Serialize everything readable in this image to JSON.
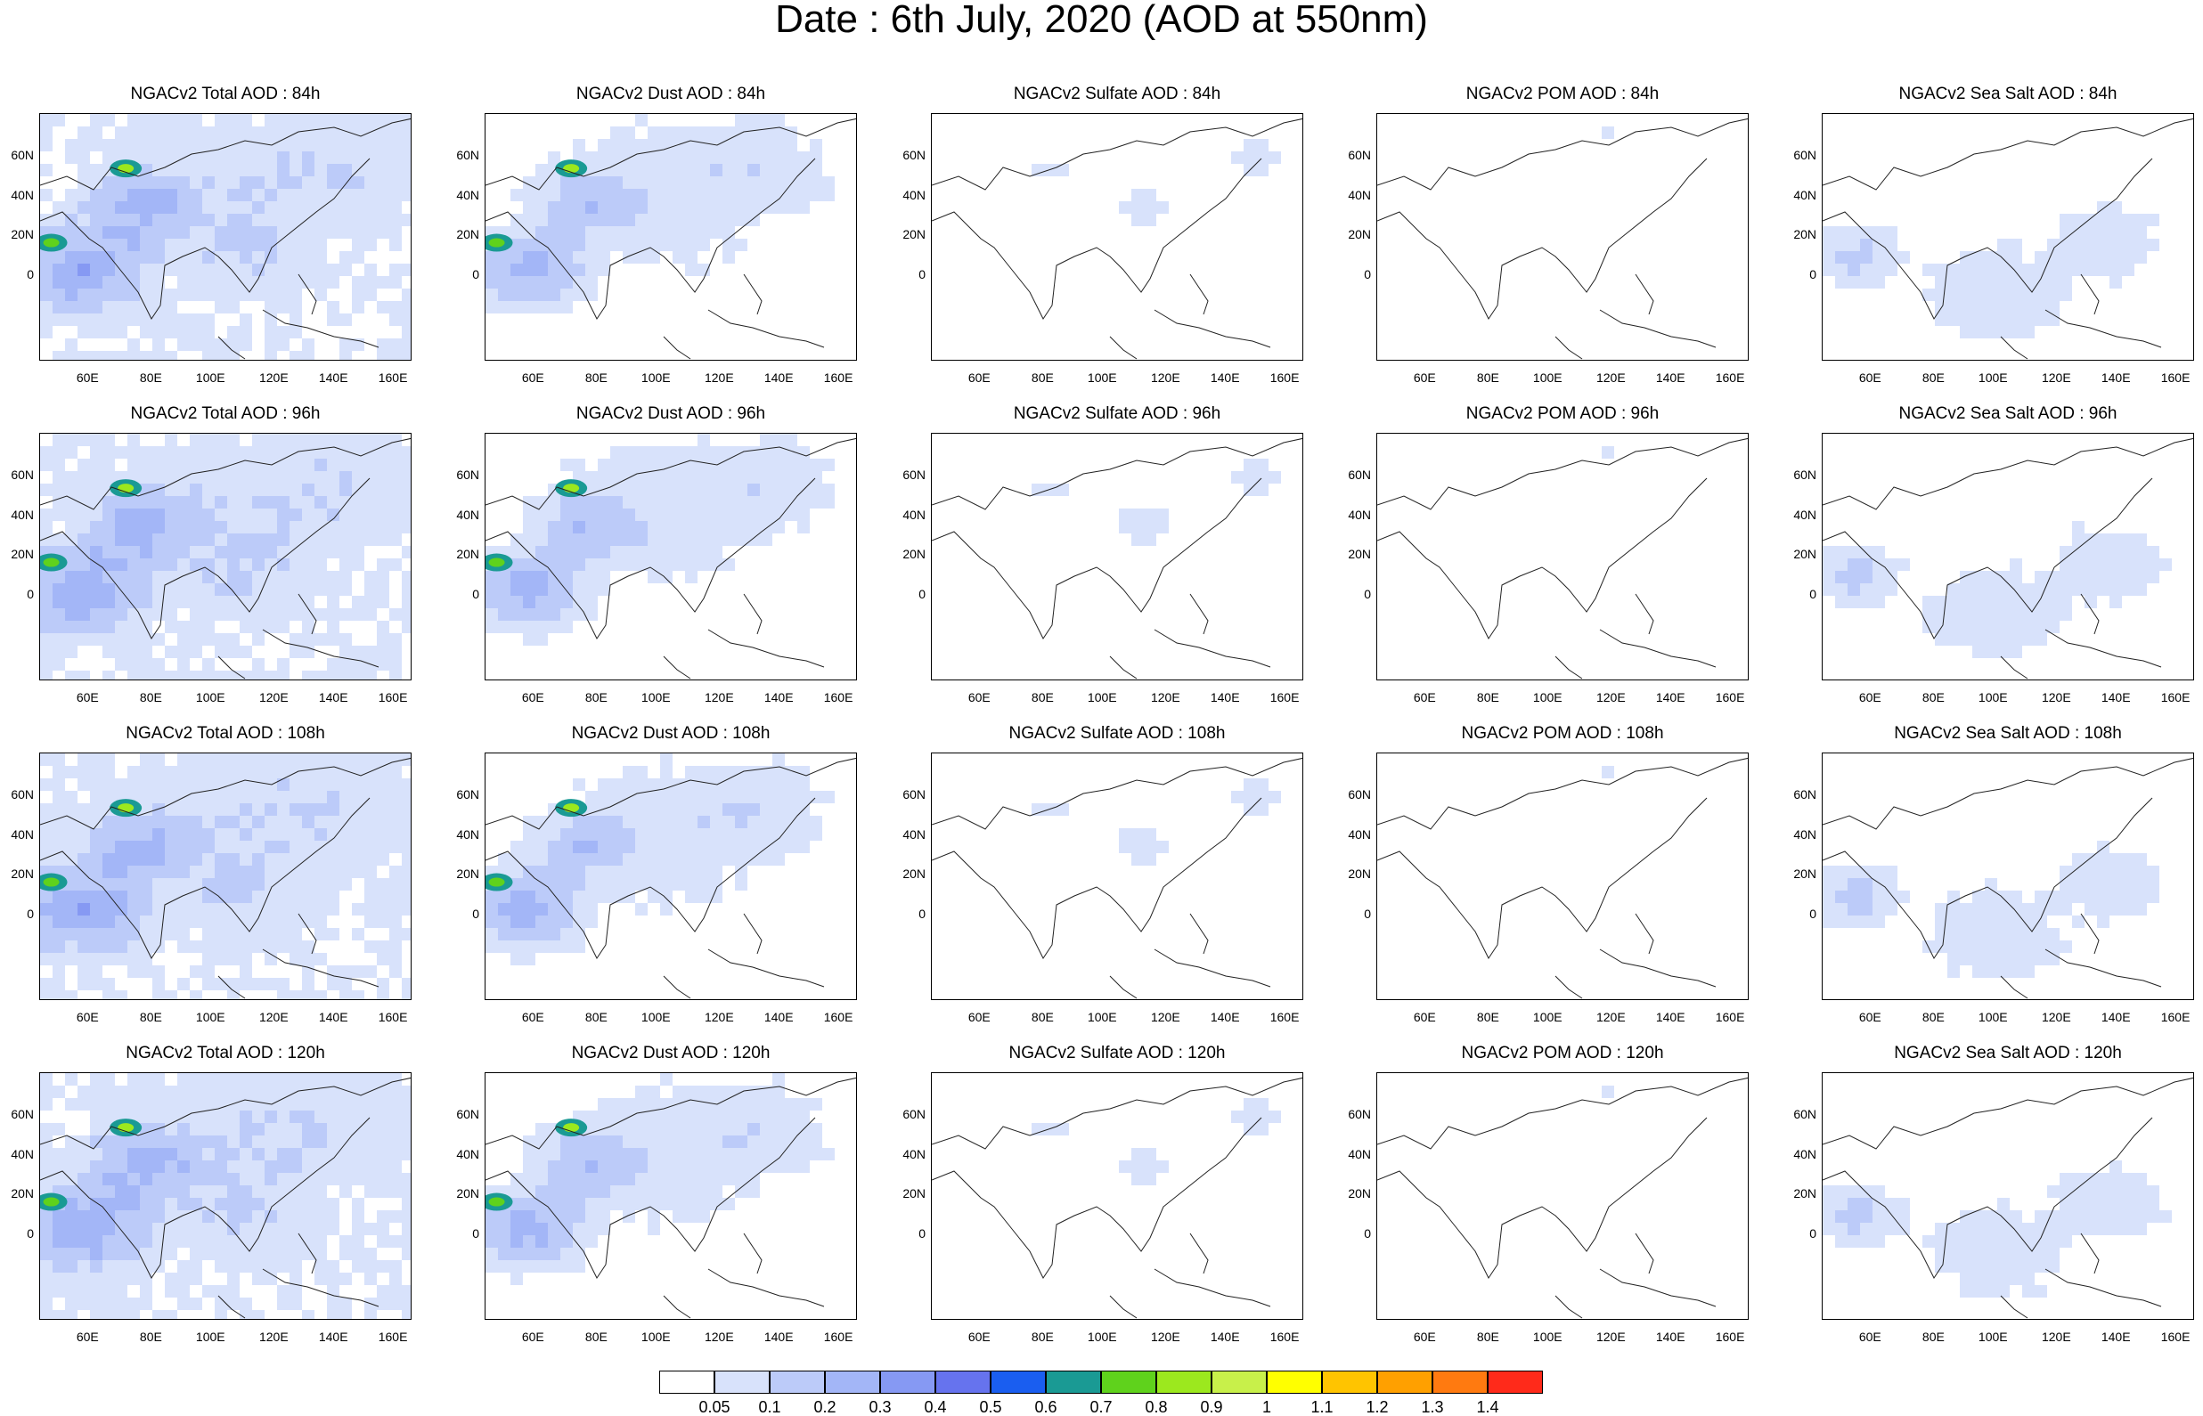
{
  "title": "Date : 6th July, 2020 (AOD at 550nm)",
  "lat_ticks": [
    "60N",
    "40N",
    "20N",
    "0"
  ],
  "lon_ticks": [
    "60E",
    "80E",
    "100E",
    "120E",
    "140E",
    "160E"
  ],
  "panels": [
    [
      "NGACv2 Total AOD : 84h",
      "NGACv2 Dust AOD : 84h",
      "NGACv2 Sulfate AOD : 84h",
      "NGACv2 POM AOD : 84h",
      "NGACv2 Sea Salt AOD : 84h"
    ],
    [
      "NGACv2 Total AOD : 96h",
      "NGACv2 Dust AOD : 96h",
      "NGACv2 Sulfate AOD : 96h",
      "NGACv2 POM AOD : 96h",
      "NGACv2 Sea Salt AOD : 96h"
    ],
    [
      "NGACv2 Total AOD : 108h",
      "NGACv2 Dust AOD : 108h",
      "NGACv2 Sulfate AOD : 108h",
      "NGACv2 POM AOD : 108h",
      "NGACv2 Sea Salt AOD : 108h"
    ],
    [
      "NGACv2 Total AOD : 120h",
      "NGACv2 Dust AOD : 120h",
      "NGACv2 Sulfate AOD : 120h",
      "NGACv2 POM AOD : 120h",
      "NGACv2 Sea Salt  AOD : 120h"
    ]
  ],
  "colorbar": {
    "labels": [
      "0.05",
      "0.1",
      "0.2",
      "0.3",
      "0.4",
      "0.5",
      "0.6",
      "0.7",
      "0.8",
      "0.9",
      "1",
      "1.1",
      "1.2",
      "1.3",
      "1.4"
    ],
    "colors": [
      "#ffffff",
      "#d8e2fb",
      "#bccbf9",
      "#a3b6f7",
      "#8699f3",
      "#6673ee",
      "#1a5ef0",
      "#1a9a94",
      "#5fd21c",
      "#9ce81e",
      "#c8f04a",
      "#ffff00",
      "#ffc400",
      "#ffa000",
      "#ff7a10",
      "#ff2a1a"
    ]
  }
}
